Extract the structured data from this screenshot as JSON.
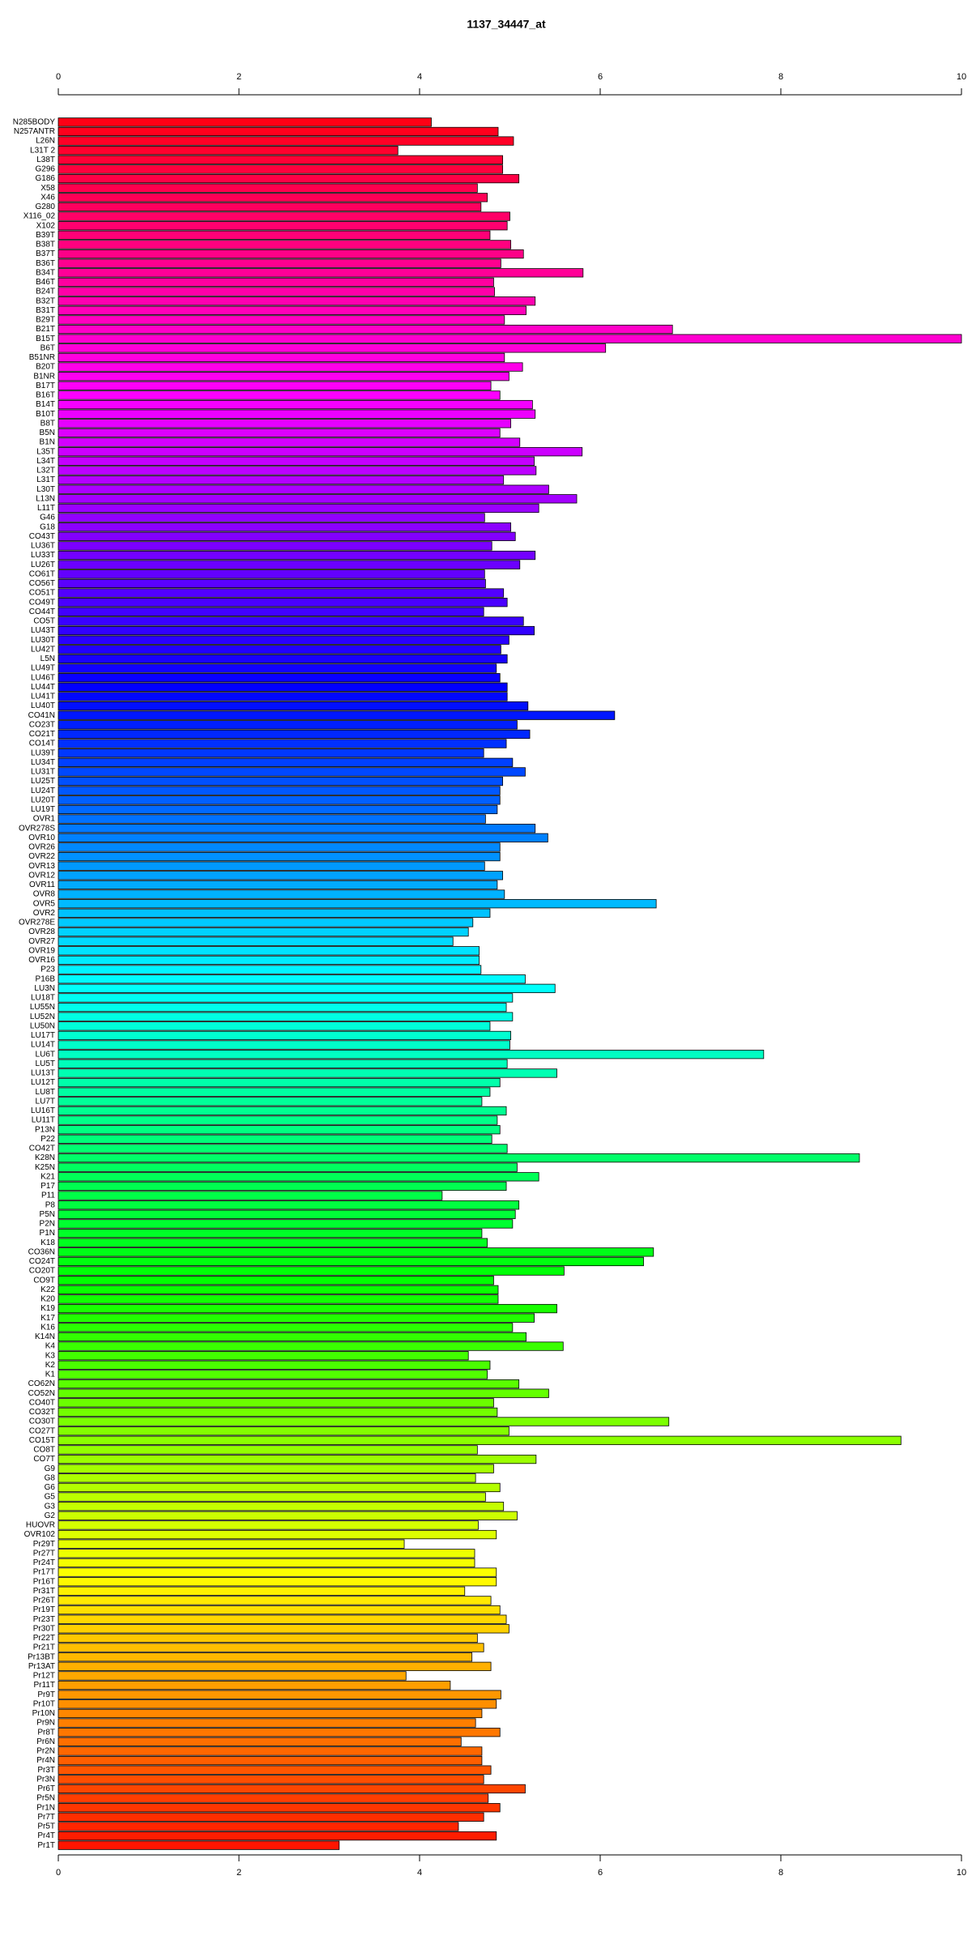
{
  "chart_data": {
    "type": "barh",
    "title": "1137_34447_at",
    "categories": [
      "N285BODY",
      "N257ANTR",
      "L26N",
      "L31T 2",
      "L38T",
      "G296",
      "G186",
      "X58",
      "X46",
      "G280",
      "X116_02",
      "X102",
      "B39T",
      "B38T",
      "B37T",
      "B36T",
      "B34T",
      "B46T",
      "B24T",
      "B32T",
      "B31T",
      "B29T",
      "B21T",
      "B15T",
      "B6T",
      "B51NR",
      "B20T",
      "B1NR",
      "B17T",
      "B16T",
      "B14T",
      "B10T",
      "B8T",
      "B5N",
      "B1N",
      "L35T",
      "L34T",
      "L32T",
      "L31T",
      "L30T",
      "L13N",
      "L11T",
      "G46",
      "G18",
      "CO43T",
      "LU36T",
      "LU33T",
      "LU26T",
      "CO61T",
      "CO56T",
      "CO51T",
      "CO49T",
      "CO44T",
      "CO5T",
      "LU43T",
      "LU30T",
      "LU42T",
      "L5N",
      "LU49T",
      "LU46T",
      "LU44T",
      "LU41T",
      "LU40T",
      "CO41N",
      "CO23T",
      "CO21T",
      "CO14T",
      "LU39T",
      "LU34T",
      "LU31T",
      "LU25T",
      "LU24T",
      "LU20T",
      "LU19T",
      "OVR1",
      "OVR278S",
      "OVR10",
      "OVR26",
      "OVR22",
      "OVR13",
      "OVR12",
      "OVR11",
      "OVR8",
      "OVR5",
      "OVR2",
      "OVR278E",
      "OVR28",
      "OVR27",
      "OVR19",
      "OVR16",
      "P23",
      "P16B",
      "LU3N",
      "LU18T",
      "LU55N",
      "LU52N",
      "LU50N",
      "LU17T",
      "LU14T",
      "LU6T",
      "LU5T",
      "LU13T",
      "LU12T",
      "LU8T",
      "LU7T",
      "LU16T",
      "LU11T",
      "P13N",
      "P22",
      "CO42T",
      "K28N",
      "K25N",
      "K21",
      "P17",
      "P11",
      "P8",
      "P5N",
      "P2N",
      "P1N",
      "K18",
      "CO36N",
      "CO24T",
      "CO20T",
      "CO9T",
      "K22",
      "K20",
      "K19",
      "K17",
      "K16",
      "K14N",
      "K4",
      "K3",
      "K2",
      "K1",
      "CO62N",
      "CO52N",
      "CO40T",
      "CO32T",
      "CO30T",
      "CO27T",
      "CO15T",
      "CO8T",
      "CO7T",
      "G9",
      "G8",
      "G6",
      "G5",
      "G3",
      "G2",
      "HUOVR",
      "OVR102",
      "Pr29T",
      "Pr27T",
      "Pr24T",
      "Pr17T",
      "Pr16T",
      "Pr31T",
      "Pr26T",
      "Pr19T",
      "Pr23T",
      "Pr30T",
      "Pr22T",
      "Pr21T",
      "Pr13BT",
      "Pr13AT",
      "Pr12T",
      "Pr11T",
      "Pr9T",
      "Pr10T",
      "Pr10N",
      "Pr9N",
      "Pr8T",
      "Pr6N",
      "Pr2N",
      "Pr4N",
      "Pr3T",
      "Pr3N",
      "Pr6T",
      "Pr5N",
      "Pr1N",
      "Pr7T",
      "Pr5T",
      "Pr4T",
      "Pr1T"
    ],
    "values": [
      4.13,
      4.87,
      5.04,
      3.76,
      4.92,
      4.92,
      5.1,
      4.64,
      4.75,
      4.68,
      5.0,
      4.97,
      4.78,
      5.01,
      5.15,
      4.9,
      5.81,
      4.82,
      4.83,
      5.28,
      5.18,
      4.94,
      6.8,
      10.0,
      6.06,
      4.94,
      5.14,
      4.99,
      4.79,
      4.89,
      5.25,
      5.28,
      5.01,
      4.89,
      5.11,
      5.8,
      5.27,
      5.29,
      4.93,
      5.43,
      5.74,
      5.32,
      4.72,
      5.01,
      5.06,
      4.8,
      5.28,
      5.11,
      4.72,
      4.73,
      4.93,
      4.97,
      4.71,
      5.15,
      5.27,
      4.99,
      4.9,
      4.97,
      4.85,
      4.89,
      4.97,
      4.97,
      5.2,
      6.16,
      5.08,
      5.22,
      4.96,
      4.71,
      5.03,
      5.17,
      4.92,
      4.89,
      4.89,
      4.86,
      4.73,
      5.28,
      5.42,
      4.89,
      4.89,
      4.72,
      4.92,
      4.86,
      4.94,
      6.62,
      4.78,
      4.59,
      4.54,
      4.37,
      4.66,
      4.66,
      4.68,
      5.17,
      5.5,
      5.03,
      4.96,
      5.03,
      4.78,
      5.01,
      5.0,
      7.81,
      4.97,
      5.52,
      4.89,
      4.78,
      4.69,
      4.96,
      4.86,
      4.89,
      4.8,
      4.97,
      8.87,
      5.08,
      5.32,
      4.96,
      4.25,
      5.1,
      5.06,
      5.03,
      4.69,
      4.75,
      6.59,
      6.48,
      5.6,
      4.82,
      4.87,
      4.87,
      5.52,
      5.27,
      5.03,
      5.18,
      5.59,
      4.54,
      4.78,
      4.75,
      5.1,
      5.43,
      4.82,
      4.86,
      6.76,
      4.99,
      9.33,
      4.64,
      5.29,
      4.82,
      4.62,
      4.89,
      4.73,
      4.93,
      5.08,
      4.65,
      4.85,
      3.83,
      4.61,
      4.61,
      4.85,
      4.85,
      4.5,
      4.79,
      4.89,
      4.96,
      4.99,
      4.64,
      4.71,
      4.58,
      4.79,
      3.85,
      4.34,
      4.9,
      4.85,
      4.69,
      4.62,
      4.89,
      4.46,
      4.69,
      4.69,
      4.79,
      4.71,
      5.17,
      4.76,
      4.89,
      4.71,
      4.43,
      4.85,
      3.11
    ],
    "palette": "rainbow",
    "xlim": [
      0,
      10
    ],
    "xticks": [
      0,
      2,
      4,
      6,
      8,
      10
    ]
  }
}
